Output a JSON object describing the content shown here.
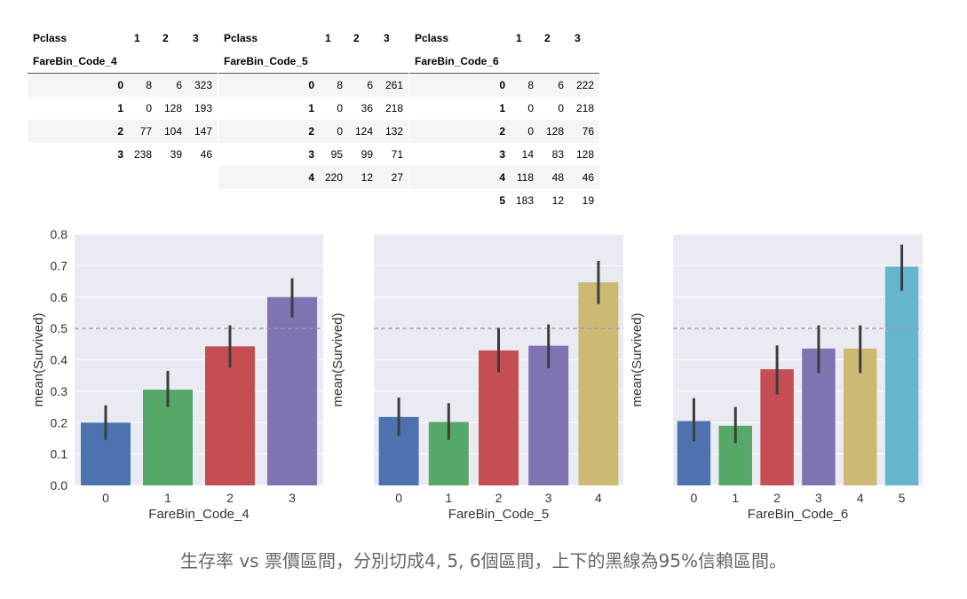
{
  "tables": [
    {
      "col_header_label": "Pclass",
      "columns": [
        "1",
        "2",
        "3"
      ],
      "index_label": "FareBin_Code_4",
      "rows": [
        {
          "index": "0",
          "values": [
            "8",
            "6",
            "323"
          ]
        },
        {
          "index": "1",
          "values": [
            "0",
            "128",
            "193"
          ]
        },
        {
          "index": "2",
          "values": [
            "77",
            "104",
            "147"
          ]
        },
        {
          "index": "3",
          "values": [
            "238",
            "39",
            "46"
          ]
        }
      ]
    },
    {
      "col_header_label": "Pclass",
      "columns": [
        "1",
        "2",
        "3"
      ],
      "index_label": "FareBin_Code_5",
      "rows": [
        {
          "index": "0",
          "values": [
            "8",
            "6",
            "261"
          ]
        },
        {
          "index": "1",
          "values": [
            "0",
            "36",
            "218"
          ]
        },
        {
          "index": "2",
          "values": [
            "0",
            "124",
            "132"
          ]
        },
        {
          "index": "3",
          "values": [
            "95",
            "99",
            "71"
          ]
        },
        {
          "index": "4",
          "values": [
            "220",
            "12",
            "27"
          ]
        }
      ]
    },
    {
      "col_header_label": "Pclass",
      "columns": [
        "1",
        "2",
        "3"
      ],
      "index_label": "FareBin_Code_6",
      "rows": [
        {
          "index": "0",
          "values": [
            "8",
            "6",
            "222"
          ]
        },
        {
          "index": "1",
          "values": [
            "0",
            "0",
            "218"
          ]
        },
        {
          "index": "2",
          "values": [
            "0",
            "128",
            "76"
          ]
        },
        {
          "index": "3",
          "values": [
            "14",
            "83",
            "128"
          ]
        },
        {
          "index": "4",
          "values": [
            "118",
            "48",
            "46"
          ]
        },
        {
          "index": "5",
          "values": [
            "183",
            "12",
            "19"
          ]
        }
      ]
    }
  ],
  "palette": [
    "#4c72b0",
    "#55a868",
    "#c44e52",
    "#8172b2",
    "#ccb974",
    "#64b5cd"
  ],
  "chart_data": [
    {
      "type": "bar",
      "xlabel": "FareBin_Code_4",
      "ylabel": "mean(Survived)",
      "categories": [
        "0",
        "1",
        "2",
        "3"
      ],
      "values": [
        0.2,
        0.305,
        0.443,
        0.6
      ],
      "ci": [
        [
          0.145,
          0.255
        ],
        [
          0.25,
          0.365
        ],
        [
          0.375,
          0.51
        ],
        [
          0.535,
          0.66
        ]
      ],
      "ylim": [
        0,
        0.8
      ],
      "yticks": [
        "0.0",
        "0.1",
        "0.2",
        "0.3",
        "0.4",
        "0.5",
        "0.6",
        "0.7",
        "0.8"
      ],
      "reference_line": 0.5,
      "grid": true
    },
    {
      "type": "bar",
      "xlabel": "FareBin_Code_5",
      "ylabel": "mean(Survived)",
      "categories": [
        "0",
        "1",
        "2",
        "3",
        "4"
      ],
      "values": [
        0.218,
        0.202,
        0.43,
        0.445,
        0.647
      ],
      "ci": [
        [
          0.158,
          0.28
        ],
        [
          0.145,
          0.262
        ],
        [
          0.36,
          0.502
        ],
        [
          0.373,
          0.513
        ],
        [
          0.578,
          0.715
        ]
      ],
      "ylim": [
        0,
        0.8
      ],
      "reference_line": 0.5,
      "grid": true
    },
    {
      "type": "bar",
      "xlabel": "FareBin_Code_6",
      "ylabel": "mean(Survived)",
      "categories": [
        "0",
        "1",
        "2",
        "3",
        "4",
        "5"
      ],
      "values": [
        0.205,
        0.19,
        0.37,
        0.436,
        0.436,
        0.697
      ],
      "ci": [
        [
          0.14,
          0.278
        ],
        [
          0.135,
          0.25
        ],
        [
          0.29,
          0.446
        ],
        [
          0.358,
          0.51
        ],
        [
          0.358,
          0.51
        ],
        [
          0.62,
          0.767
        ]
      ],
      "ylim": [
        0,
        0.8
      ],
      "reference_line": 0.5,
      "grid": true
    }
  ],
  "caption": "生存率 vs 票價區間，分別切成4, 5, 6個區間，上下的黑線為95%信賴區間。"
}
